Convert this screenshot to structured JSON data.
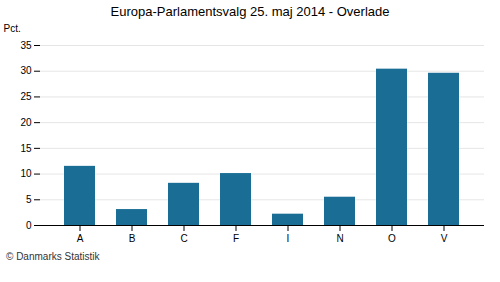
{
  "chart_data": {
    "type": "bar",
    "title": "Europa-Parlamentsvalg 25. maj 2014 - Overlade",
    "categories": [
      "A",
      "B",
      "C",
      "F",
      "I",
      "N",
      "O",
      "V"
    ],
    "values": [
      11.5,
      3.1,
      8.2,
      10.1,
      2.2,
      5.5,
      30.4,
      29.6
    ],
    "color": "#1a6e96",
    "ylabel": "Pct.",
    "ylim": [
      0,
      35
    ],
    "yticks": [
      0,
      5,
      10,
      15,
      20,
      25,
      30,
      35
    ],
    "grid": true,
    "footer": "© Danmarks Statistik"
  }
}
